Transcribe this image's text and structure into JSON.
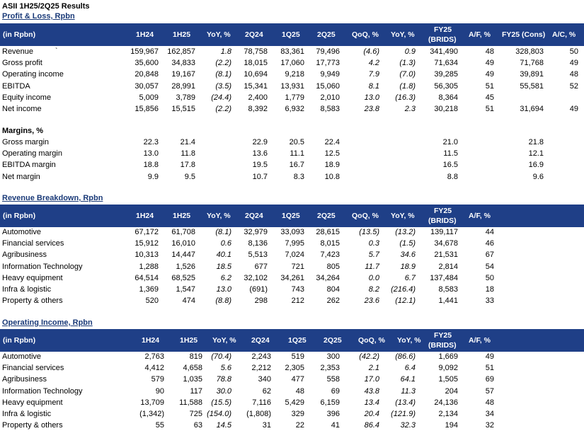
{
  "title": "ASII 1H25/2Q25 Results",
  "pnl": {
    "section_title": "Profit & Loss, Rpbn",
    "headers": [
      "(in Rpbn)",
      "1H24",
      "1H25",
      "YoY, %",
      "2Q24",
      "1Q25",
      "2Q25",
      "QoQ, %",
      "YoY, %",
      "FY25",
      "(BRIDS)",
      "A/F, %",
      "FY25 (Cons)",
      "A/C, %"
    ],
    "rows": [
      {
        "label": "Revenue",
        "mark": "`",
        "v": [
          "159,967",
          "162,857",
          "1.8",
          "78,758",
          "83,361",
          "79,496",
          "(4.6)",
          "0.9",
          "341,490",
          "48",
          "328,803",
          "50"
        ]
      },
      {
        "label": "Gross profit",
        "mark": "",
        "v": [
          "35,600",
          "34,833",
          "(2.2)",
          "18,015",
          "17,060",
          "17,773",
          "4.2",
          "(1.3)",
          "71,634",
          "49",
          "71,768",
          "49"
        ]
      },
      {
        "label": "Operating income",
        "mark": "",
        "v": [
          "20,848",
          "19,167",
          "(8.1)",
          "10,694",
          "9,218",
          "9,949",
          "7.9",
          "(7.0)",
          "39,285",
          "49",
          "39,891",
          "48"
        ]
      },
      {
        "label": "EBITDA",
        "mark": "",
        "v": [
          "30,057",
          "28,991",
          "(3.5)",
          "15,341",
          "13,931",
          "15,060",
          "8.1",
          "(1.8)",
          "56,305",
          "51",
          "55,581",
          "52"
        ]
      },
      {
        "label": "Equity income",
        "mark": "",
        "v": [
          "5,009",
          "3,789",
          "(24.4)",
          "2,400",
          "1,779",
          "2,010",
          "13.0",
          "(16.3)",
          "8,364",
          "45",
          "",
          ""
        ]
      },
      {
        "label": "Net income",
        "mark": "",
        "v": [
          "15,856",
          "15,515",
          "(2.2)",
          "8,392",
          "6,932",
          "8,583",
          "23.8",
          "2.3",
          "30,218",
          "51",
          "31,694",
          "49"
        ]
      }
    ]
  },
  "margins": {
    "section_title": "Margins, %",
    "rows": [
      {
        "label": "Gross margin",
        "v": [
          "22.3",
          "21.4",
          "",
          "22.9",
          "20.5",
          "22.4",
          "",
          "",
          "21.0",
          "",
          "21.8",
          ""
        ]
      },
      {
        "label": "Operating margin",
        "v": [
          "13.0",
          "11.8",
          "",
          "13.6",
          "11.1",
          "12.5",
          "",
          "",
          "11.5",
          "",
          "12.1",
          ""
        ]
      },
      {
        "label": "EBITDA margin",
        "v": [
          "18.8",
          "17.8",
          "",
          "19.5",
          "16.7",
          "18.9",
          "",
          "",
          "16.5",
          "",
          "16.9",
          ""
        ]
      },
      {
        "label": "Net margin",
        "v": [
          "9.9",
          "9.5",
          "",
          "10.7",
          "8.3",
          "10.8",
          "",
          "",
          "8.8",
          "",
          "9.6",
          ""
        ]
      }
    ]
  },
  "revenue": {
    "section_title": "Revenue Breakdown, Rpbn",
    "headers": [
      "(in Rpbn)",
      "1H24",
      "1H25",
      "YoY, %",
      "2Q24",
      "1Q25",
      "2Q25",
      "QoQ, %",
      "YoY, %",
      "FY25",
      "(BRIDS)",
      "A/F, %"
    ],
    "rows": [
      {
        "label": "Automotive",
        "v": [
          "67,172",
          "61,708",
          "(8.1)",
          "32,979",
          "33,093",
          "28,615",
          "(13.5)",
          "(13.2)",
          "139,117",
          "44"
        ]
      },
      {
        "label": "Financial services",
        "v": [
          "15,912",
          "16,010",
          "0.6",
          "8,136",
          "7,995",
          "8,015",
          "0.3",
          "(1.5)",
          "34,678",
          "46"
        ]
      },
      {
        "label": "Agribusiness",
        "v": [
          "10,313",
          "14,447",
          "40.1",
          "5,513",
          "7,024",
          "7,423",
          "5.7",
          "34.6",
          "21,531",
          "67"
        ]
      },
      {
        "label": "Information Technology",
        "v": [
          "1,288",
          "1,526",
          "18.5",
          "677",
          "721",
          "805",
          "11.7",
          "18.9",
          "2,814",
          "54"
        ]
      },
      {
        "label": "Heavy equipment",
        "v": [
          "64,514",
          "68,525",
          "6.2",
          "32,102",
          "34,261",
          "34,264",
          "0.0",
          "6.7",
          "137,484",
          "50"
        ]
      },
      {
        "label": "Infra & logistic",
        "v": [
          "1,369",
          "1,547",
          "13.0",
          "(691)",
          "743",
          "804",
          "8.2",
          "(216.4)",
          "8,583",
          "18"
        ]
      },
      {
        "label": "Property & others",
        "v": [
          "520",
          "474",
          "(8.8)",
          "298",
          "212",
          "262",
          "23.6",
          "(12.1)",
          "1,441",
          "33"
        ]
      }
    ]
  },
  "opinc": {
    "section_title": "Operating Income, Rpbn",
    "headers": [
      "(in Rpbn)",
      "1H24",
      "1H25",
      "YoY, %",
      "2Q24",
      "1Q25",
      "2Q25",
      "QoQ, %",
      "YoY, %",
      "FY25",
      "(BRIDS)",
      "A/F, %"
    ],
    "rows": [
      {
        "label": "Automotive",
        "v": [
          "2,763",
          "819",
          "(70.4)",
          "2,243",
          "519",
          "300",
          "(42.2)",
          "(86.6)",
          "1,669",
          "49"
        ]
      },
      {
        "label": "Financial services",
        "v": [
          "4,412",
          "4,658",
          "5.6",
          "2,212",
          "2,305",
          "2,353",
          "2.1",
          "6.4",
          "9,092",
          "51"
        ]
      },
      {
        "label": "Agribusiness",
        "v": [
          "579",
          "1,035",
          "78.8",
          "340",
          "477",
          "558",
          "17.0",
          "64.1",
          "1,505",
          "69"
        ]
      },
      {
        "label": "Information Technology",
        "v": [
          "90",
          "117",
          "30.0",
          "62",
          "48",
          "69",
          "43.8",
          "11.3",
          "204",
          "57"
        ]
      },
      {
        "label": "Heavy equipment",
        "v": [
          "13,709",
          "11,588",
          "(15.5)",
          "7,116",
          "5,429",
          "6,159",
          "13.4",
          "(13.4)",
          "24,136",
          "48"
        ]
      },
      {
        "label": "Infra & logistic",
        "v": [
          "(1,342)",
          "725",
          "(154.0)",
          "(1,808)",
          "329",
          "396",
          "20.4",
          "(121.9)",
          "2,134",
          "34"
        ]
      },
      {
        "label": "Property & others",
        "v": [
          "55",
          "63",
          "14.5",
          "31",
          "22",
          "41",
          "86.4",
          "32.3",
          "194",
          "32"
        ]
      }
    ]
  }
}
